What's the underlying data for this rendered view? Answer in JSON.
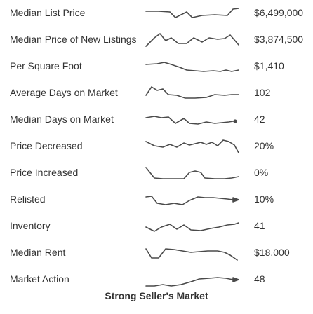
{
  "rows": [
    {
      "label": "Median List Price",
      "value": "$6,499,000"
    },
    {
      "label": "Median Price of New Listings",
      "value": "$3,874,500"
    },
    {
      "label": "Per Square Foot",
      "value": "$1,410"
    },
    {
      "label": "Average Days on Market",
      "value": "102"
    },
    {
      "label": "Median Days on Market",
      "value": "42"
    },
    {
      "label": "Price Decreased",
      "value": "20%"
    },
    {
      "label": "Price Increased",
      "value": "0%"
    },
    {
      "label": "Relisted",
      "value": "10%"
    },
    {
      "label": "Inventory",
      "value": "41"
    },
    {
      "label": "Median Rent",
      "value": "$18,000"
    },
    {
      "label": "Market Action",
      "value": "48"
    }
  ],
  "summary": "Strong Seller's Market",
  "colors": {
    "text": "#333333",
    "sparkline": "#4a4a4a",
    "background": "#ffffff"
  }
}
